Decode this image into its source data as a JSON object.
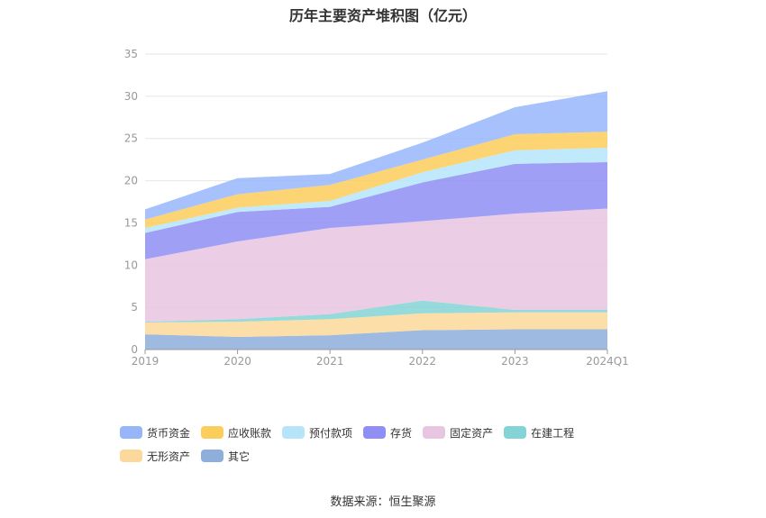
{
  "chart_data": {
    "type": "area",
    "stacked": true,
    "title": "历年主要资产堆积图（亿元）",
    "categories": [
      "2019",
      "2020",
      "2021",
      "2022",
      "2023",
      "2024Q1"
    ],
    "ylim": [
      0,
      35
    ],
    "yticks": [
      0,
      5,
      10,
      15,
      20,
      25,
      30,
      35
    ],
    "grid": true,
    "legend_position": "bottom",
    "series": [
      {
        "name": "其它",
        "color": "#8eaedb",
        "values": [
          1.8,
          1.5,
          1.7,
          2.3,
          2.4,
          2.4
        ]
      },
      {
        "name": "无形资产",
        "color": "#fcd89a",
        "values": [
          1.4,
          1.8,
          1.9,
          2.0,
          2.0,
          2.0
        ]
      },
      {
        "name": "在建工程",
        "color": "#84d3d6",
        "values": [
          0.1,
          0.3,
          0.6,
          1.5,
          0.3,
          0.3
        ]
      },
      {
        "name": "固定资产",
        "color": "#e8c6e1",
        "values": [
          7.4,
          9.2,
          10.2,
          9.4,
          11.4,
          12.0
        ]
      },
      {
        "name": "存货",
        "color": "#8f8ef5",
        "values": [
          3.1,
          3.5,
          2.5,
          4.6,
          5.9,
          5.5
        ]
      },
      {
        "name": "预付款项",
        "color": "#b6e5fb",
        "values": [
          0.6,
          0.5,
          0.7,
          1.2,
          1.6,
          1.7
        ]
      },
      {
        "name": "应收账款",
        "color": "#fbcd5b",
        "values": [
          1.0,
          1.6,
          1.9,
          1.5,
          1.9,
          1.9
        ]
      },
      {
        "name": "货币资金",
        "color": "#97b6fa",
        "values": [
          1.2,
          1.9,
          1.3,
          2.0,
          3.2,
          4.8
        ]
      }
    ],
    "legend_order": [
      "货币资金",
      "应收账款",
      "预付款项",
      "存货",
      "固定资产",
      "在建工程",
      "无形资产",
      "其它"
    ]
  },
  "source_text": "数据来源：恒生聚源"
}
